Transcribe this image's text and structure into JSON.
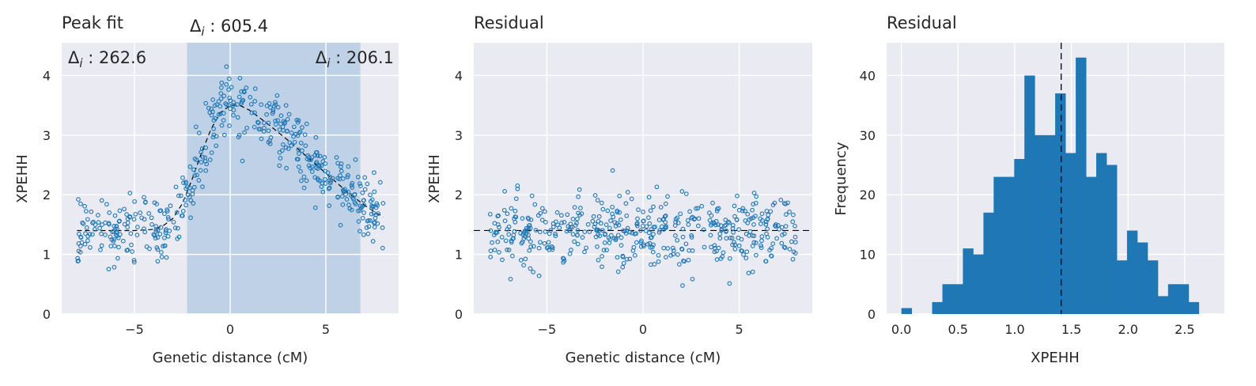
{
  "colors": {
    "axes_bg": "#eaeaf2",
    "grid": "#ffffff",
    "marker": "#1f77b4",
    "bar": "#1f77b4",
    "span": "#b7cde4",
    "fit_line": "#000000"
  },
  "chart_data": [
    {
      "type": "scatter",
      "title": "Peak fit",
      "xlabel": "Genetic distance (cM)",
      "ylabel": "XPEHH",
      "xlim": [
        -8.8,
        8.8
      ],
      "ylim": [
        0,
        4.55
      ],
      "xticks": [
        -5,
        0,
        5
      ],
      "xtick_labels": [
        "−5",
        "0",
        "5"
      ],
      "yticks": [
        0,
        1,
        2,
        3,
        4
      ],
      "ytick_labels": [
        "0",
        "1",
        "2",
        "3",
        "4"
      ],
      "grid": true,
      "shaded_region": [
        -2.25,
        6.8
      ],
      "fit_curve": {
        "style": "dashed",
        "x": [
          -8,
          -7,
          -6,
          -5,
          -4,
          -3.5,
          -3,
          -2.5,
          -2,
          -1.5,
          -1,
          -0.5,
          0,
          0.5,
          1,
          1.5,
          2,
          2.5,
          3,
          3.5,
          4,
          4.5,
          5,
          5.5,
          6,
          6.5,
          7,
          7.5,
          8
        ],
        "y": [
          1.4,
          1.4,
          1.4,
          1.4,
          1.42,
          1.48,
          1.6,
          1.85,
          2.25,
          2.7,
          3.1,
          3.38,
          3.5,
          3.5,
          3.42,
          3.3,
          3.18,
          3.05,
          2.92,
          2.78,
          2.64,
          2.5,
          2.36,
          2.22,
          2.08,
          1.95,
          1.83,
          1.72,
          1.63
        ]
      },
      "annotations": [
        {
          "text": "Δi : 262.6",
          "position": "top-left"
        },
        {
          "text": "Δi : 605.4",
          "position": "above-shaded-left"
        },
        {
          "text": "Δi : 206.1",
          "position": "top-right"
        }
      ]
    },
    {
      "type": "scatter",
      "title": "Residual",
      "xlabel": "Genetic distance (cM)",
      "ylabel": "XPEHH",
      "xlim": [
        -8.8,
        8.8
      ],
      "ylim": [
        0,
        4.55
      ],
      "xticks": [
        -5,
        0,
        5
      ],
      "xtick_labels": [
        "−5",
        "0",
        "5"
      ],
      "yticks": [
        0,
        1,
        2,
        3,
        4
      ],
      "ytick_labels": [
        "0",
        "1",
        "2",
        "3",
        "4"
      ],
      "grid": true,
      "reference_line": {
        "orientation": "horizontal",
        "value": 1.4,
        "style": "dashed"
      }
    },
    {
      "type": "bar",
      "title": "Residual",
      "xlabel": "XPEHH",
      "ylabel": "Frequency",
      "xlim": [
        -0.13,
        2.85
      ],
      "ylim": [
        0,
        45.5
      ],
      "xticks": [
        0,
        0.5,
        1,
        1.5,
        2,
        2.5
      ],
      "xtick_labels": [
        "0.0",
        "0.5",
        "1.0",
        "1.5",
        "2.0",
        "2.5"
      ],
      "yticks": [
        0,
        10,
        20,
        30,
        40
      ],
      "ytick_labels": [
        "0",
        "10",
        "20",
        "30",
        "40"
      ],
      "grid": true,
      "bin_width": 0.0905,
      "bin_start": 0.0,
      "values": [
        1,
        0,
        0,
        2,
        5,
        5,
        11,
        10,
        17,
        23,
        23,
        26,
        40,
        30,
        30,
        37,
        27,
        43,
        23,
        27,
        25,
        9,
        14,
        12,
        9,
        3,
        5,
        5,
        2
      ],
      "reference_line": {
        "orientation": "vertical",
        "value": 1.41,
        "style": "dashed"
      }
    }
  ]
}
